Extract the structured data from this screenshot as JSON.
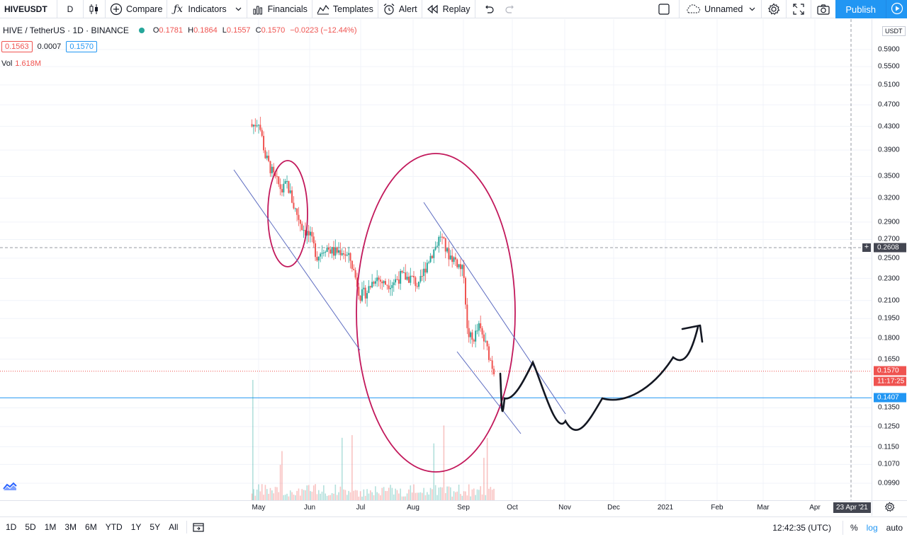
{
  "toolbar": {
    "symbol": "HIVEUSDT",
    "interval": "D",
    "compare": "Compare",
    "indicators": "Indicators",
    "financials": "Financials",
    "templates": "Templates",
    "alert": "Alert",
    "replay": "Replay",
    "layout_name": "Unnamed",
    "publish": "Publish"
  },
  "legend": {
    "title": "HIVE / TetherUS · 1D · BINANCE",
    "o_label": "O",
    "o": "0.1781",
    "h_label": "H",
    "h": "0.1864",
    "l_label": "L",
    "l": "0.1557",
    "c_label": "C",
    "c": "0.1570",
    "change": "−0.0223 (−12.44%)",
    "bid": "0.1563",
    "spread": "0.0007",
    "ask": "0.1570",
    "vol_label": "Vol",
    "vol_value": "1.618M"
  },
  "price_axis": {
    "currency": "USDT",
    "ticks": [
      "0.5900",
      "0.5500",
      "0.5100",
      "0.4700",
      "0.4300",
      "0.3900",
      "0.3500",
      "0.3200",
      "0.2900",
      "0.2700",
      "0.2500",
      "0.2300",
      "0.2100",
      "0.1950",
      "0.1800",
      "0.1650",
      "0.1350",
      "0.1250",
      "0.1150",
      "0.1070",
      "0.0990"
    ],
    "crosshair_price": "0.2608",
    "last_price": "0.1570",
    "countdown": "11:17:25",
    "line_price": "0.1407"
  },
  "time_axis": {
    "ticks": [
      "May",
      "Jun",
      "Jul",
      "Aug",
      "Sep",
      "Oct",
      "Nov",
      "Dec",
      "2021",
      "Feb",
      "Mar",
      "Apr"
    ],
    "crosshair_date": "23 Apr '21"
  },
  "bottom_bar": {
    "ranges": [
      "1D",
      "5D",
      "1M",
      "3M",
      "6M",
      "YTD",
      "1Y",
      "5Y",
      "All"
    ],
    "clock": "12:42:35 (UTC)",
    "percent": "%",
    "log": "log",
    "auto": "auto"
  },
  "colors": {
    "up": "#26a69a",
    "down": "#ef5350",
    "accent": "#2196f3",
    "annotation_ellipse": "#c2185b",
    "trend_line": "#5c6bc0",
    "projection_arrow": "#131722"
  },
  "icons": {
    "candles": "candlestick-icon",
    "compare": "plus-circle-icon",
    "indicators": "fx-icon",
    "financials": "bar-chart-icon",
    "templates": "templates-icon",
    "alert": "alarm-clock-icon",
    "replay": "rewind-icon",
    "undo": "undo-icon",
    "redo": "redo-icon",
    "layout": "cloud-icon",
    "settings": "gear-icon",
    "fullscreen": "fullscreen-icon",
    "snapshot": "camera-icon"
  },
  "chart_data": {
    "type": "candlestick",
    "symbol": "HIVE / TetherUS",
    "interval": "1D",
    "exchange": "BINANCE",
    "scale": "log",
    "grid": true,
    "approx_daily_close": [
      {
        "date": "2020-04-27",
        "close": 0.43
      },
      {
        "date": "2020-05-01",
        "close": 0.44
      },
      {
        "date": "2020-05-05",
        "close": 0.38
      },
      {
        "date": "2020-05-10",
        "close": 0.35
      },
      {
        "date": "2020-05-15",
        "close": 0.33
      },
      {
        "date": "2020-05-18",
        "close": 0.34
      },
      {
        "date": "2020-05-22",
        "close": 0.31
      },
      {
        "date": "2020-05-27",
        "close": 0.285
      },
      {
        "date": "2020-06-01",
        "close": 0.272
      },
      {
        "date": "2020-06-05",
        "close": 0.252
      },
      {
        "date": "2020-06-10",
        "close": 0.262
      },
      {
        "date": "2020-06-15",
        "close": 0.256
      },
      {
        "date": "2020-06-20",
        "close": 0.258
      },
      {
        "date": "2020-06-25",
        "close": 0.248
      },
      {
        "date": "2020-07-01",
        "close": 0.214
      },
      {
        "date": "2020-07-05",
        "close": 0.218
      },
      {
        "date": "2020-07-10",
        "close": 0.232
      },
      {
        "date": "2020-07-15",
        "close": 0.225
      },
      {
        "date": "2020-07-20",
        "close": 0.226
      },
      {
        "date": "2020-07-25",
        "close": 0.232
      },
      {
        "date": "2020-08-01",
        "close": 0.23
      },
      {
        "date": "2020-08-05",
        "close": 0.222
      },
      {
        "date": "2020-08-10",
        "close": 0.246
      },
      {
        "date": "2020-08-15",
        "close": 0.262
      },
      {
        "date": "2020-08-18",
        "close": 0.275
      },
      {
        "date": "2020-08-22",
        "close": 0.255
      },
      {
        "date": "2020-08-27",
        "close": 0.248
      },
      {
        "date": "2020-09-01",
        "close": 0.235
      },
      {
        "date": "2020-09-03",
        "close": 0.185
      },
      {
        "date": "2020-09-06",
        "close": 0.178
      },
      {
        "date": "2020-09-10",
        "close": 0.188
      },
      {
        "date": "2020-09-14",
        "close": 0.175
      },
      {
        "date": "2020-09-19",
        "close": 0.157
      }
    ],
    "horizontal_line": 0.1407,
    "last_price": 0.157
  }
}
